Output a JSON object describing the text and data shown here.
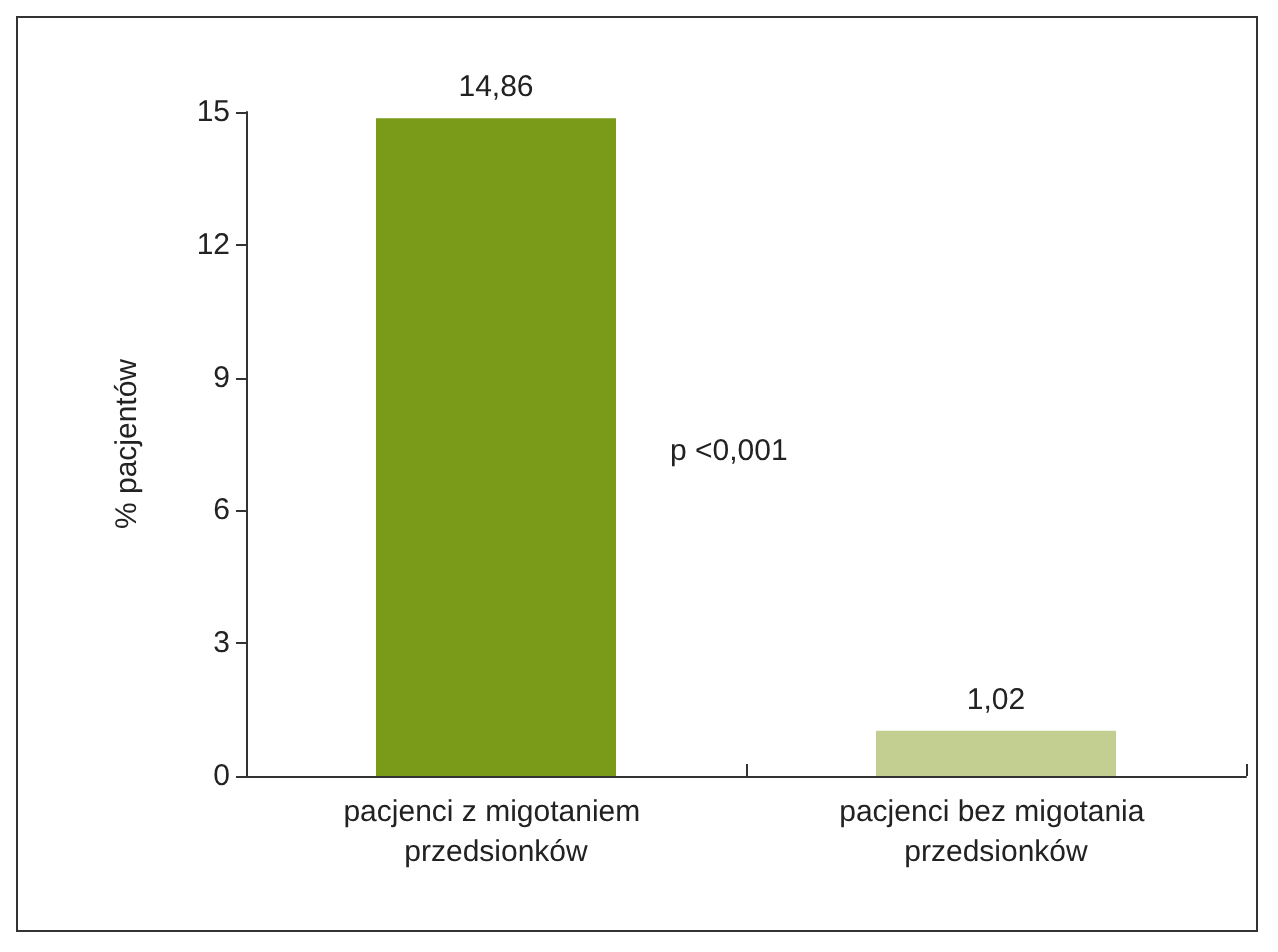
{
  "chart_data": {
    "type": "bar",
    "ylabel": "% pacjentów",
    "categories": [
      "pacjenci z migotaniem przedsionków",
      "pacjenci bez migotania przedsionków"
    ],
    "values": [
      14.86,
      1.02
    ],
    "colors": [
      "#7a9a1a",
      "#c3cf90"
    ],
    "value_labels": [
      "14,86",
      "1,02"
    ],
    "ylim": [
      0,
      15
    ],
    "yticks": [
      0,
      3,
      6,
      9,
      12,
      15
    ],
    "grid": false,
    "annotations": [
      "p <0,001"
    ]
  }
}
